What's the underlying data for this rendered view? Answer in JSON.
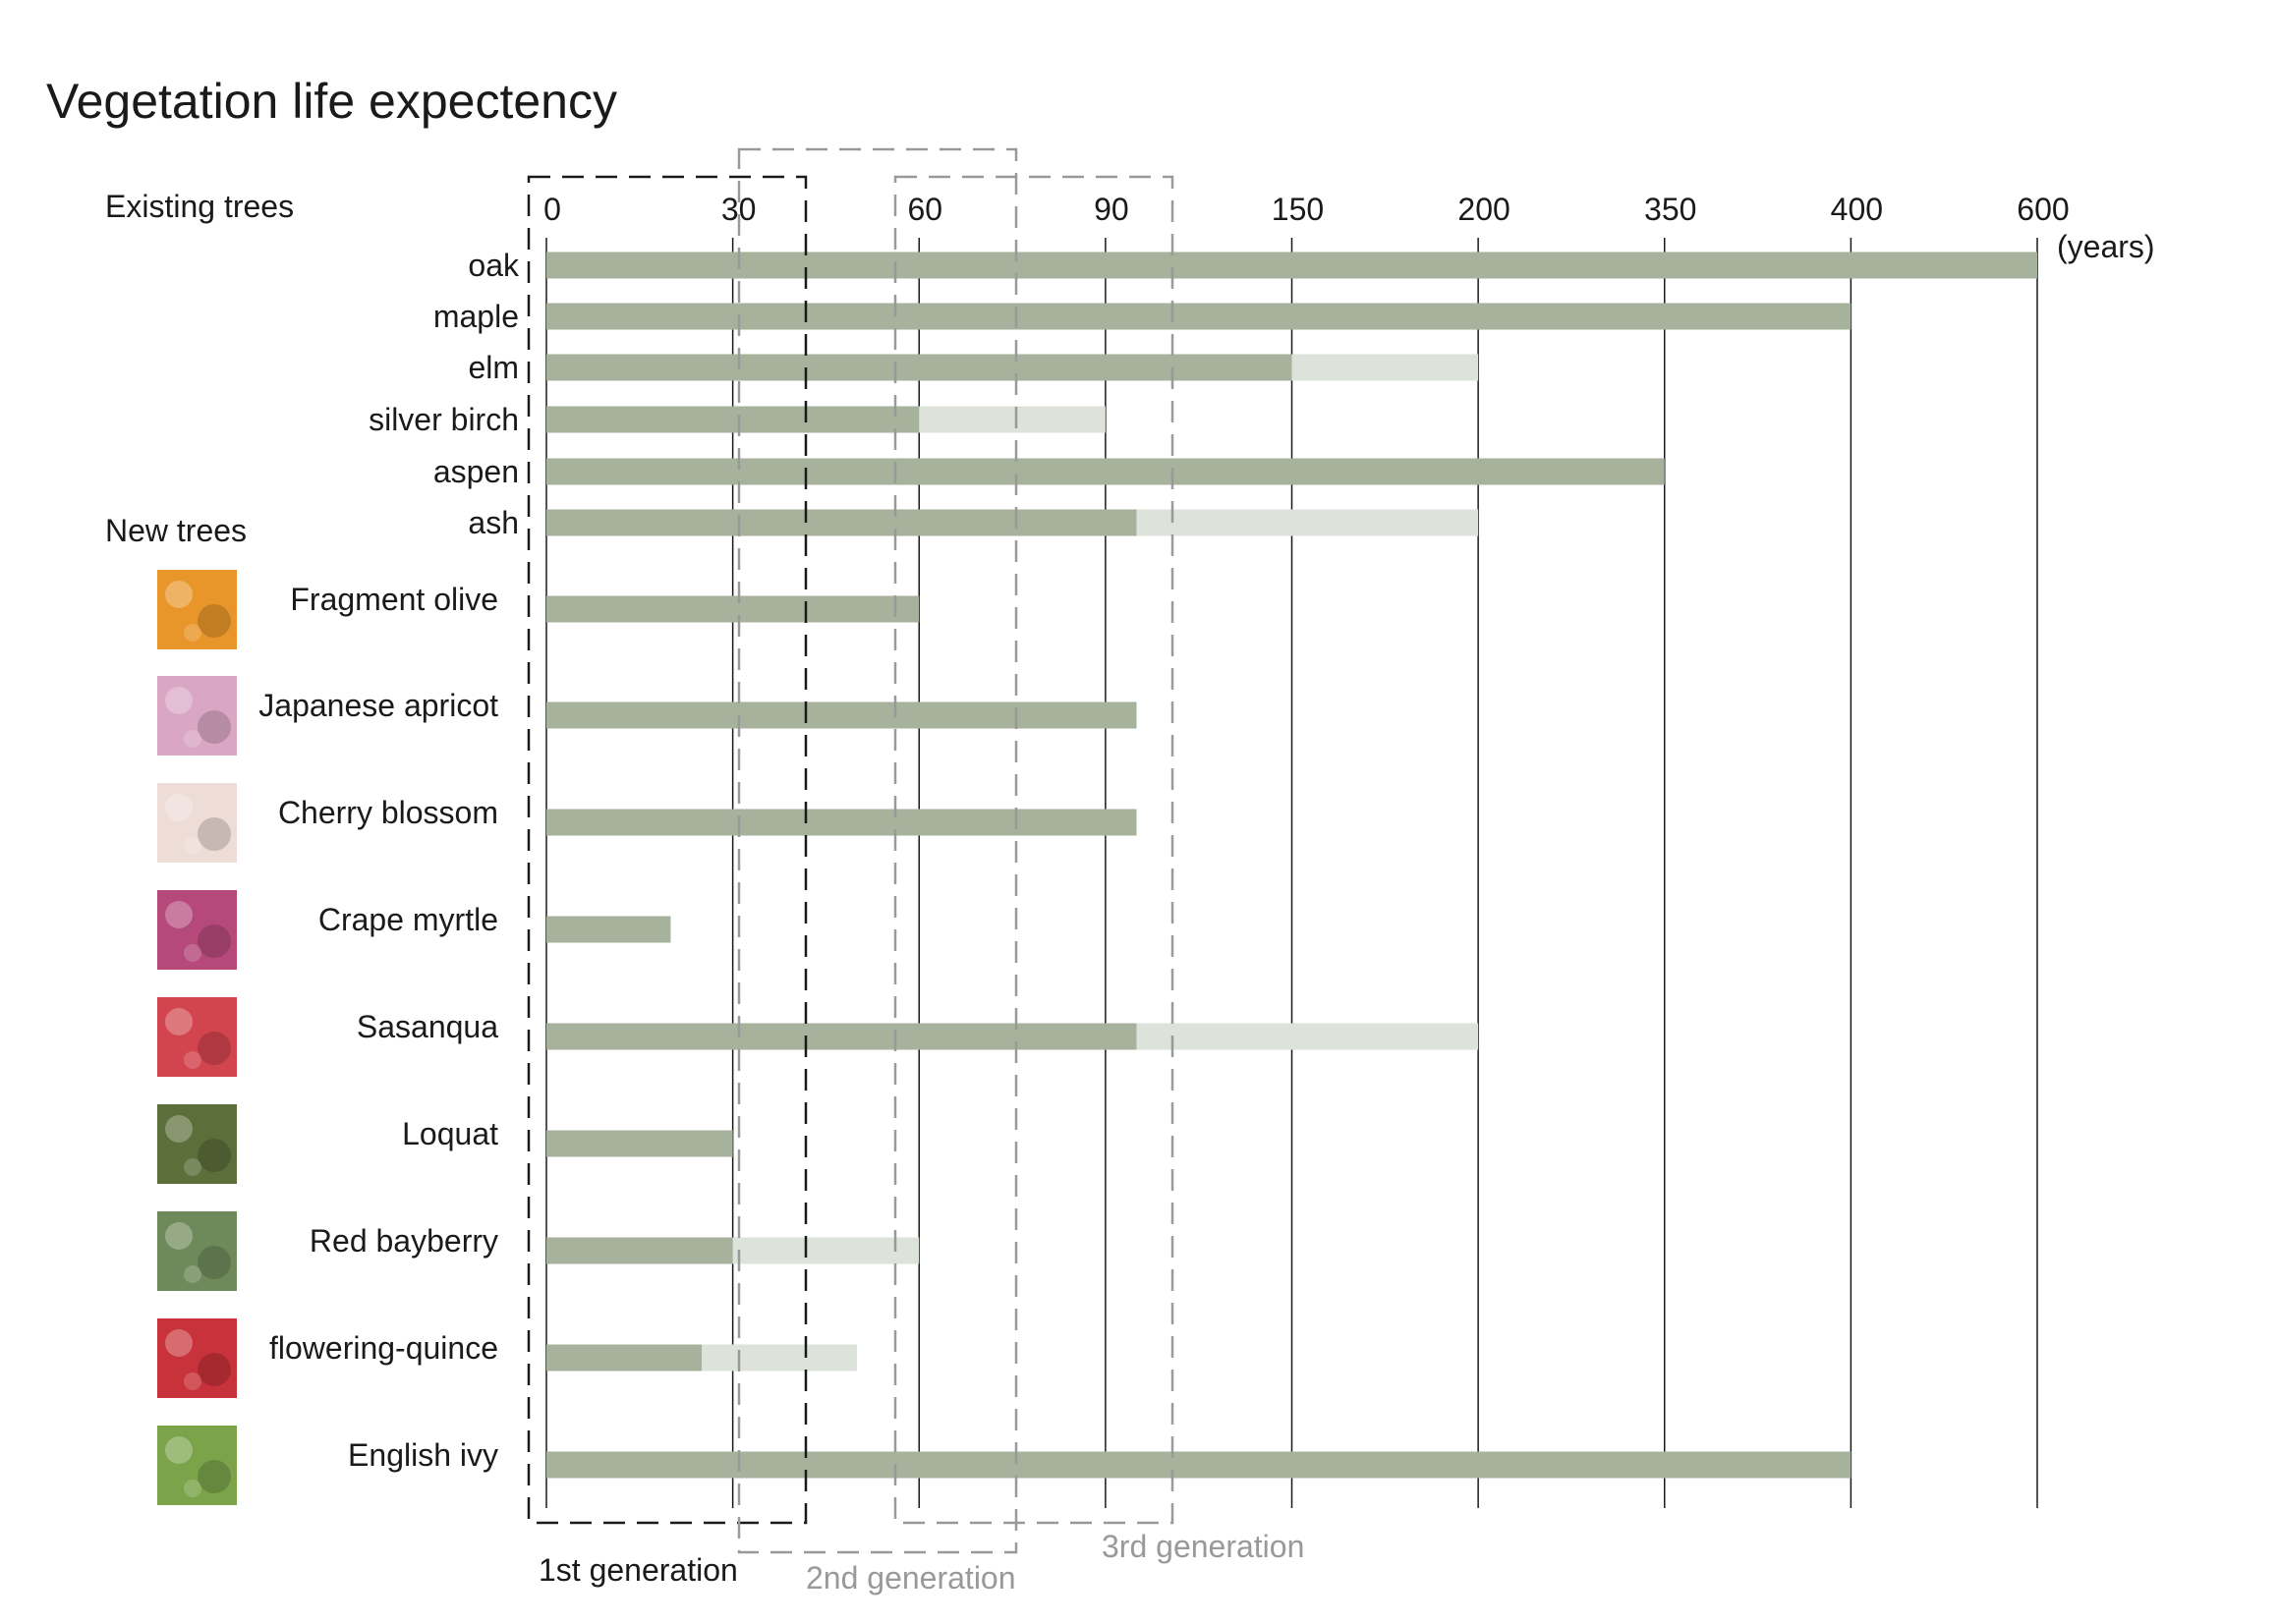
{
  "chart_data": {
    "type": "bar",
    "orientation": "horizontal",
    "title": "Vegetation life expectency",
    "unit_label": "(years)",
    "x_ticks": [
      0,
      30,
      60,
      90,
      150,
      200,
      350,
      400,
      600
    ],
    "sections": {
      "existing": "Existing trees",
      "new": "New trees"
    },
    "series": [
      {
        "name": "life expectancy (min)",
        "color": "#a6b29c"
      },
      {
        "name": "life expectancy (max)",
        "color": "#dde2da"
      }
    ],
    "existing_trees": [
      {
        "name": "oak",
        "min": 600,
        "max": 600
      },
      {
        "name": "maple",
        "min": 400,
        "max": 400
      },
      {
        "name": "elm",
        "min": 150,
        "max": 200
      },
      {
        "name": "silver birch",
        "min": 60,
        "max": 90
      },
      {
        "name": "aspen",
        "min": 350,
        "max": 350
      },
      {
        "name": "ash",
        "min": 100,
        "max": 200
      }
    ],
    "new_trees": [
      {
        "name": "Fragment olive",
        "min": 60,
        "max": 60,
        "icon": "orange-flower-photo-icon",
        "swatch": "#e8962a"
      },
      {
        "name": "Japanese apricot",
        "min": 100,
        "max": 100,
        "icon": "pink-blossom-photo-icon",
        "swatch": "#d9a6c4"
      },
      {
        "name": "Cherry blossom",
        "min": 100,
        "max": 100,
        "icon": "white-blossom-photo-icon",
        "swatch": "#eedcd6"
      },
      {
        "name": "Crape myrtle",
        "min": 20,
        "max": 20,
        "icon": "magenta-flower-photo-icon",
        "swatch": "#b54a7a"
      },
      {
        "name": "Sasanqua",
        "min": 100,
        "max": 200,
        "icon": "red-flower-photo-icon",
        "swatch": "#d2444e"
      },
      {
        "name": "Loquat",
        "min": 30,
        "max": 30,
        "icon": "loquat-fruit-photo-icon",
        "swatch": "#5c6e3a"
      },
      {
        "name": "Red bayberry",
        "min": 30,
        "max": 60,
        "icon": "bayberry-tree-photo-icon",
        "swatch": "#6f8a5a"
      },
      {
        "name": "flowering-quince",
        "min": 25,
        "max": 50,
        "icon": "quince-flower-photo-icon",
        "swatch": "#c8323a"
      },
      {
        "name": "English ivy",
        "min": 400,
        "max": 400,
        "icon": "ivy-leaves-photo-icon",
        "swatch": "#7aa34a"
      }
    ],
    "generations": [
      {
        "label": "1st generation",
        "from": 0,
        "to": 100
      },
      {
        "label": "2nd generation",
        "from": 80,
        "to": 150
      },
      {
        "label": "3rd generation",
        "from": 140,
        "to": 215
      }
    ]
  }
}
